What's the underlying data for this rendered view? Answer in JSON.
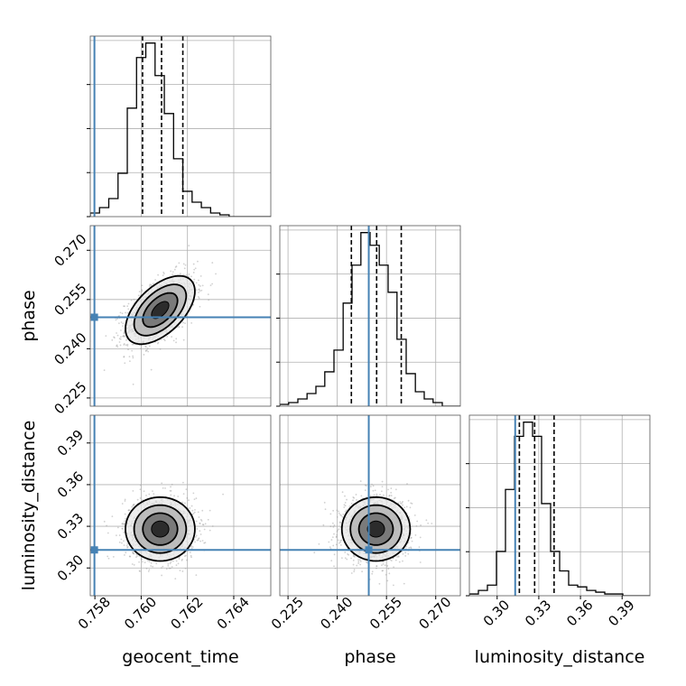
{
  "chart_data": {
    "type": "corner",
    "parameters": [
      "geocent_time",
      "phase",
      "luminosity_distance"
    ],
    "axis_labels": {
      "x": [
        "geocent_time",
        "phase",
        "luminosity_distance"
      ],
      "y": [
        "phase",
        "luminosity_distance"
      ]
    },
    "ranges": {
      "geocent_time": [
        0.7578,
        0.7656
      ],
      "phase": [
        0.2225,
        0.2775
      ],
      "luminosity_distance": [
        0.28,
        0.41
      ]
    },
    "ticks": {
      "geocent_time": [
        0.758,
        0.76,
        0.762,
        0.764
      ],
      "phase": [
        0.225,
        0.24,
        0.255,
        0.27
      ],
      "luminosity_distance": [
        0.3,
        0.33,
        0.36,
        0.39
      ]
    },
    "tick_labels": {
      "geocent_time": [
        "0.758",
        "0.760",
        "0.762",
        "0.764"
      ],
      "phase": [
        "0.225",
        "0.240",
        "0.255",
        "0.270"
      ],
      "luminosity_distance": [
        "0.30",
        "0.33",
        "0.36",
        "0.39"
      ]
    },
    "truths": {
      "geocent_time": 0.75798,
      "phase": 0.2496,
      "luminosity_distance": 0.313
    },
    "quantiles": {
      "geocent_time": [
        0.76006,
        0.76088,
        0.7618
      ],
      "phase": [
        0.2443,
        0.252,
        0.2595
      ],
      "luminosity_distance": [
        0.316,
        0.327,
        0.341
      ]
    },
    "histograms": {
      "geocent_time": {
        "edges": [
          0.7578,
          0.7582,
          0.7586,
          0.759,
          0.7594,
          0.7598,
          0.7602,
          0.7606,
          0.761,
          0.7614,
          0.7618,
          0.7622,
          0.7626,
          0.763,
          0.7634,
          0.7638,
          0.7642,
          0.7646,
          0.765,
          0.7654,
          0.7658
        ],
        "counts": [
          0.02,
          0.05,
          0.1,
          0.24,
          0.6,
          0.88,
          0.96,
          0.78,
          0.57,
          0.32,
          0.14,
          0.08,
          0.05,
          0.02,
          0.01,
          0,
          0,
          0,
          0,
          0
        ]
      },
      "phase": {
        "edges": [
          0.2225,
          0.2252,
          0.228,
          0.2308,
          0.2335,
          0.2362,
          0.239,
          0.2418,
          0.2445,
          0.2472,
          0.25,
          0.2528,
          0.2555,
          0.2582,
          0.261,
          0.2638,
          0.2665,
          0.2692,
          0.272,
          0.2748,
          0.2775
        ],
        "counts": [
          0.01,
          0.02,
          0.04,
          0.07,
          0.11,
          0.19,
          0.31,
          0.57,
          0.78,
          0.96,
          0.89,
          0.78,
          0.63,
          0.37,
          0.18,
          0.08,
          0.04,
          0.02,
          0,
          0
        ]
      },
      "luminosity_distance": {
        "edges": [
          0.28,
          0.2865,
          0.293,
          0.2995,
          0.306,
          0.3125,
          0.319,
          0.3255,
          0.332,
          0.3385,
          0.345,
          0.3515,
          0.358,
          0.3645,
          0.371,
          0.3775,
          0.384,
          0.3905,
          0.397,
          0.4035,
          0.41
        ],
        "counts": [
          0.01,
          0.03,
          0.06,
          0.25,
          0.6,
          0.9,
          0.98,
          0.9,
          0.52,
          0.25,
          0.14,
          0.06,
          0.05,
          0.03,
          0.02,
          0.01,
          0.01,
          0,
          0,
          0
        ]
      }
    },
    "contours_2d": {
      "geocent_time_phase": {
        "center": [
          0.76082,
          0.2518
        ],
        "sigma": [
          0.00075,
          0.0052
        ],
        "rho": 0.55
      },
      "geocent_time_luminosity_distance": {
        "center": [
          0.76082,
          0.328
        ],
        "sigma": [
          0.00075,
          0.0115
        ],
        "rho": 0.0
      },
      "phase_luminosity_distance": {
        "center": [
          0.2518,
          0.328
        ],
        "sigma": [
          0.0052,
          0.0115
        ],
        "rho": 0.0
      }
    },
    "contour_levels_sigma": [
      0.5,
      1.0,
      1.5,
      2.0
    ],
    "colors": {
      "truth": "#4682b4",
      "line": "#000000",
      "grid": "#b0b0b0",
      "scatter": "#999999"
    },
    "grid": true
  }
}
